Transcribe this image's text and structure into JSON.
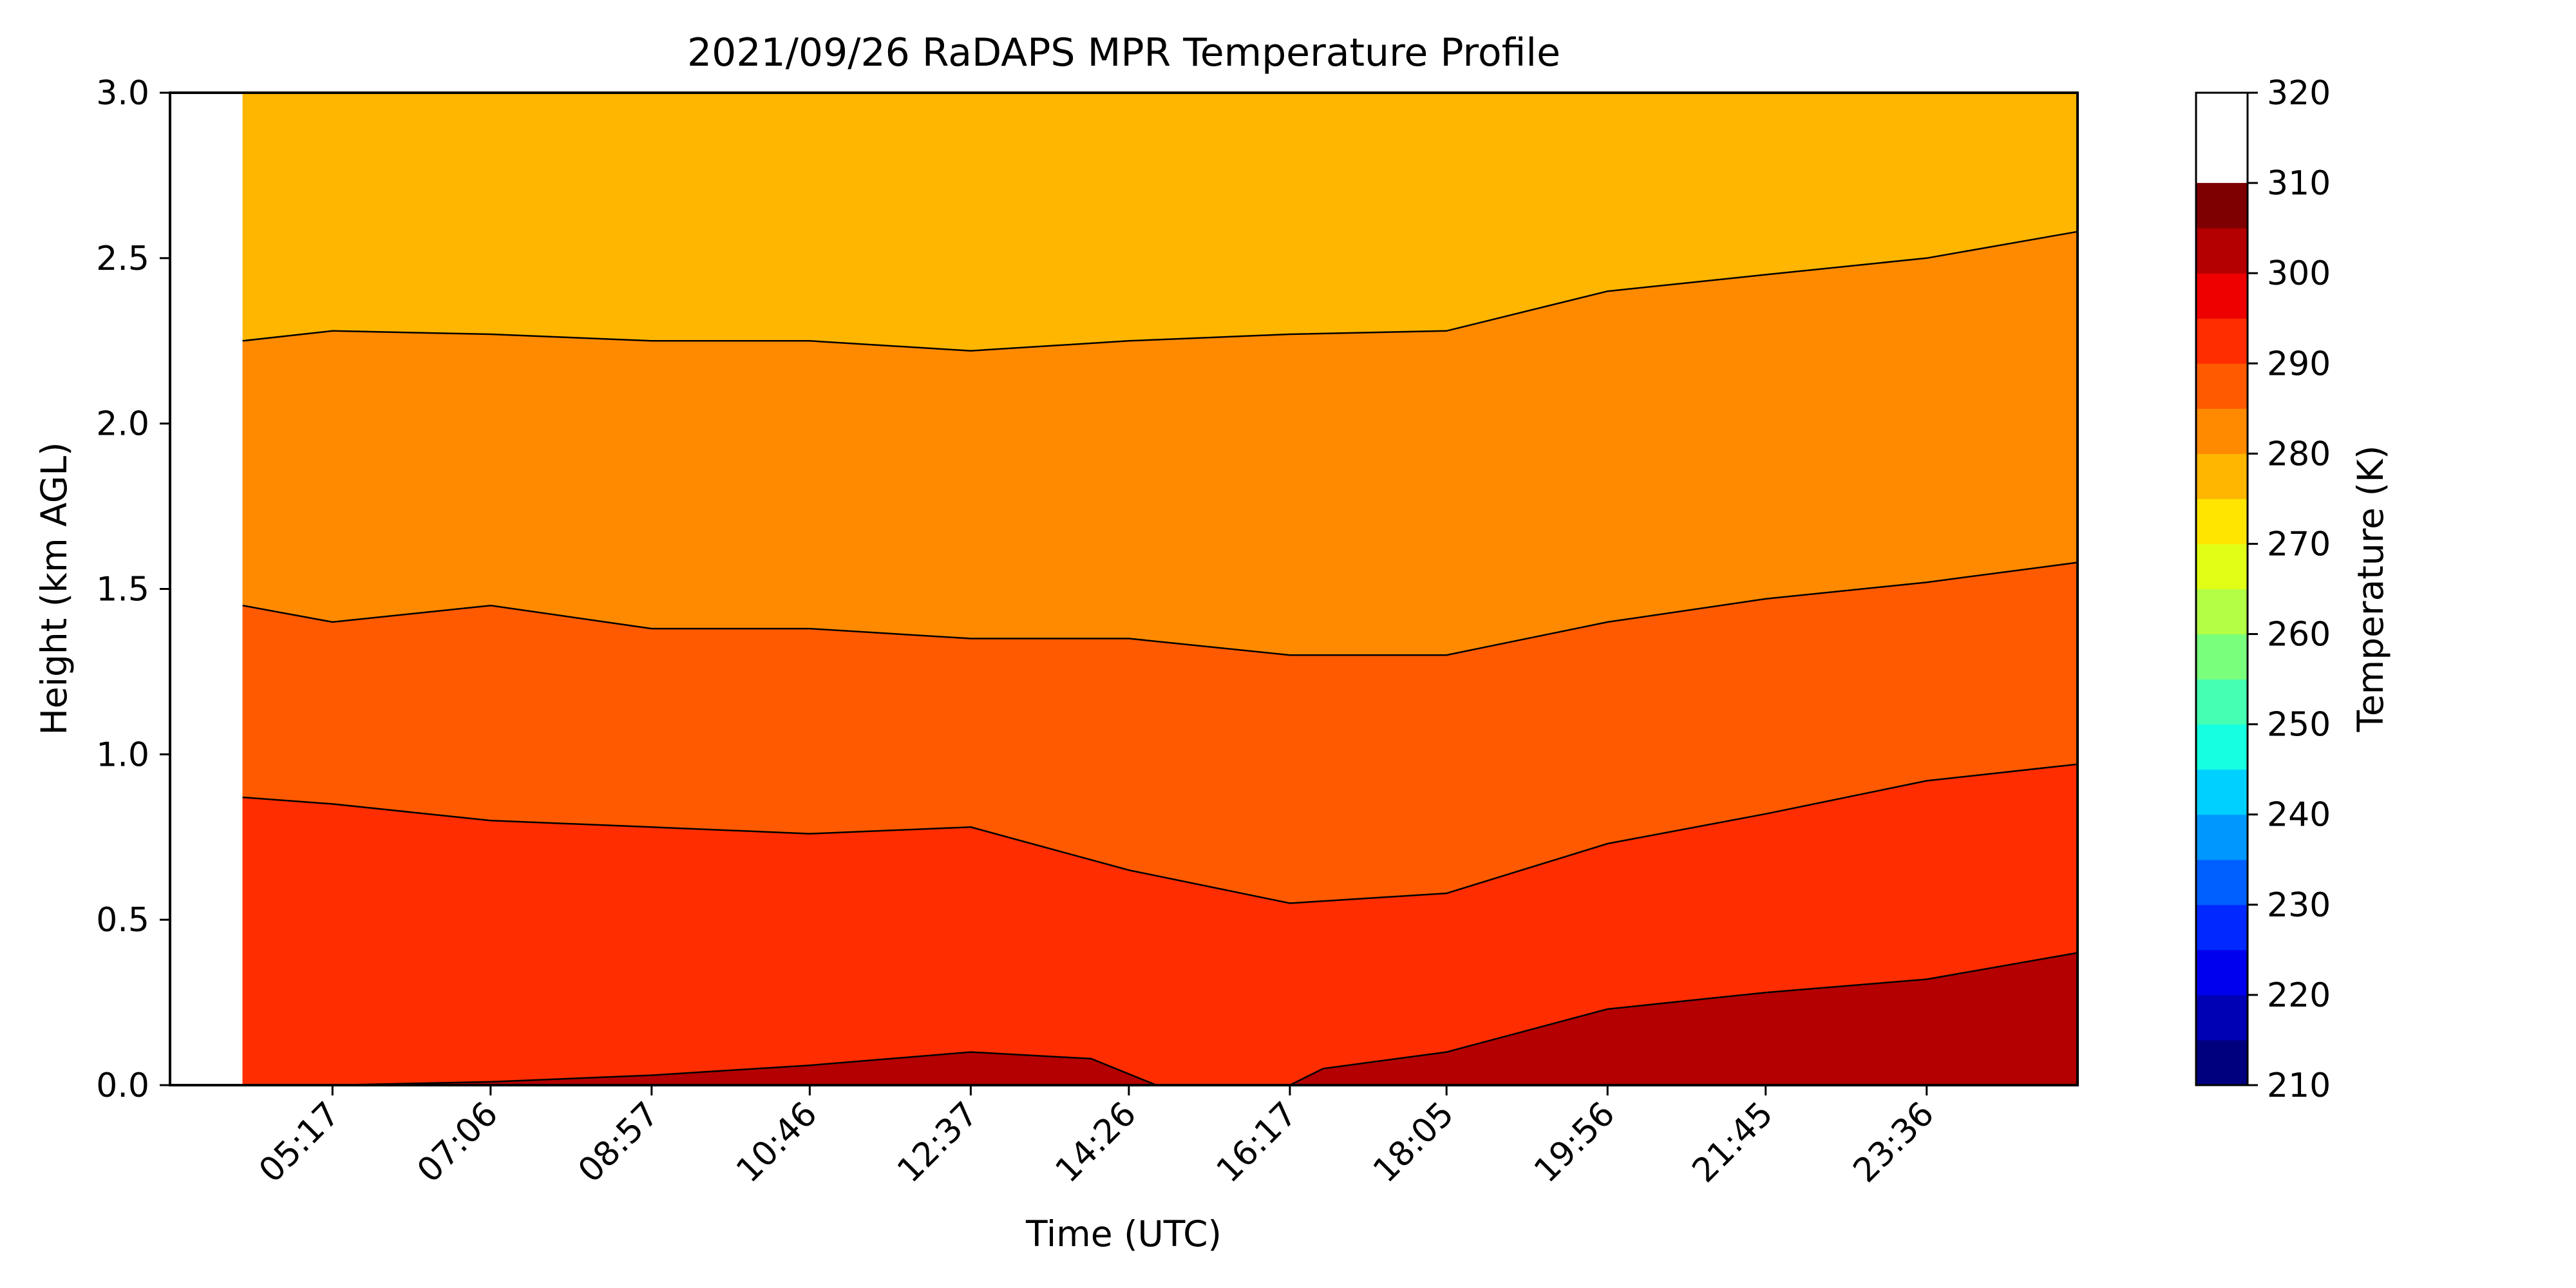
{
  "chart_data": {
    "type": "heatmap",
    "title": "2021/09/26 RaDAPS MPR Temperature Profile",
    "xlabel": "Time (UTC)",
    "ylabel": "Height (km AGL)",
    "xlim": [
      "03:25",
      "25:20"
    ],
    "ylim": [
      0.0,
      3.0
    ],
    "x_tick_labels": [
      "05:17",
      "07:06",
      "08:57",
      "10:46",
      "12:37",
      "14:26",
      "16:17",
      "18:05",
      "19:56",
      "21:45",
      "23:36"
    ],
    "y_tick_labels": [
      "0.0",
      "0.5",
      "1.0",
      "1.5",
      "2.0",
      "2.5",
      "3.0"
    ],
    "data_start": "04:15",
    "colorbar": {
      "label": "Temperature (K)",
      "range": [
        210,
        320
      ],
      "step": 5,
      "tick_labels": [
        "210",
        "220",
        "230",
        "240",
        "250",
        "260",
        "270",
        "280",
        "290",
        "300",
        "310",
        "320"
      ],
      "colors": [
        "#00007f",
        "#0000b4",
        "#0000ee",
        "#0028ff",
        "#0060ff",
        "#0098ff",
        "#00d0ff",
        "#16ffe1",
        "#45ffb2",
        "#7aff7d",
        "#b2ff45",
        "#e1ff16",
        "#ffe500",
        "#ffb600",
        "#ff8a00",
        "#ff5a00",
        "#ff2d00",
        "#ee0000",
        "#b40000",
        "#7f0000"
      ]
    },
    "contours": [
      {
        "level": 300,
        "height_km": [
          [
            "04:15",
            0.0
          ],
          [
            "05:17",
            0.0
          ],
          [
            "07:06",
            0.01
          ],
          [
            "08:57",
            0.03
          ],
          [
            "10:46",
            0.06
          ],
          [
            "12:37",
            0.1
          ],
          [
            "14:00",
            0.08
          ],
          [
            "14:45",
            0.0
          ],
          [
            "16:17",
            0.0
          ],
          [
            "16:40",
            0.05
          ],
          [
            "18:05",
            0.1
          ],
          [
            "19:56",
            0.23
          ],
          [
            "21:45",
            0.28
          ],
          [
            "23:36",
            0.32
          ],
          [
            "25:20",
            0.4
          ]
        ]
      },
      {
        "level": 290,
        "height_km": [
          [
            "04:15",
            0.87
          ],
          [
            "05:17",
            0.85
          ],
          [
            "07:06",
            0.8
          ],
          [
            "08:57",
            0.78
          ],
          [
            "10:46",
            0.76
          ],
          [
            "12:37",
            0.78
          ],
          [
            "14:26",
            0.65
          ],
          [
            "16:17",
            0.55
          ],
          [
            "18:05",
            0.58
          ],
          [
            "19:56",
            0.73
          ],
          [
            "21:45",
            0.82
          ],
          [
            "23:36",
            0.92
          ],
          [
            "25:20",
            0.97
          ]
        ]
      },
      {
        "level": 285,
        "height_km": [
          [
            "04:15",
            1.45
          ],
          [
            "05:17",
            1.4
          ],
          [
            "07:06",
            1.45
          ],
          [
            "08:57",
            1.38
          ],
          [
            "10:46",
            1.38
          ],
          [
            "12:37",
            1.35
          ],
          [
            "14:26",
            1.35
          ],
          [
            "16:17",
            1.3
          ],
          [
            "18:05",
            1.3
          ],
          [
            "19:56",
            1.4
          ],
          [
            "21:45",
            1.47
          ],
          [
            "23:36",
            1.52
          ],
          [
            "25:20",
            1.58
          ]
        ]
      },
      {
        "level": 280,
        "height_km": [
          [
            "04:15",
            2.25
          ],
          [
            "05:17",
            2.28
          ],
          [
            "07:06",
            2.27
          ],
          [
            "08:57",
            2.25
          ],
          [
            "10:46",
            2.25
          ],
          [
            "12:37",
            2.22
          ],
          [
            "14:26",
            2.25
          ],
          [
            "16:17",
            2.27
          ],
          [
            "18:05",
            2.28
          ],
          [
            "19:56",
            2.4
          ],
          [
            "21:45",
            2.45
          ],
          [
            "23:36",
            2.5
          ],
          [
            "25:20",
            2.58
          ]
        ]
      }
    ]
  }
}
